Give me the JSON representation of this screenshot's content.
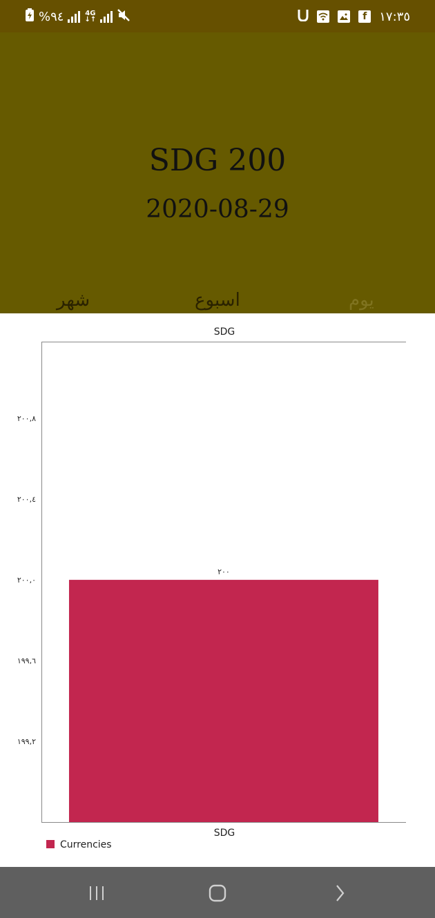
{
  "status_bar": {
    "battery": "%٩٤",
    "network": "4G",
    "time": "١٧:٣٥",
    "icons": [
      "charging-battery-icon",
      "signal-icon",
      "signal-icon",
      "mute-icon",
      "u-icon",
      "wifi-icon",
      "gallery-icon",
      "facebook-icon"
    ]
  },
  "header": {
    "title": "SDG 200",
    "date": "2020-08-29",
    "background": "#665a00"
  },
  "tabs": [
    {
      "label": "شهر",
      "active": false
    },
    {
      "label": "اسبوع",
      "active": false
    },
    {
      "label": "يوم",
      "active": true
    }
  ],
  "chart_data": {
    "type": "bar",
    "title": "SDG",
    "categories": [
      "SDG"
    ],
    "series": [
      {
        "name": "Currencies",
        "values": [
          200
        ],
        "color": "#c2264f"
      }
    ],
    "value_labels": [
      "٢٠٠"
    ],
    "yticks": [
      199.2,
      199.6,
      200.0,
      200.4,
      200.8
    ],
    "ytick_labels": [
      "١٩٩,٢",
      "١٩٩,٦",
      "٢٠٠,٠",
      "٢٠٠,٤",
      "٢٠٠,٨"
    ],
    "ylim": [
      198.8,
      201.18
    ],
    "legend_position": "bottom-left",
    "grid": false
  },
  "nav_bar": {
    "icons": [
      "recents-icon",
      "home-icon",
      "back-icon"
    ]
  }
}
